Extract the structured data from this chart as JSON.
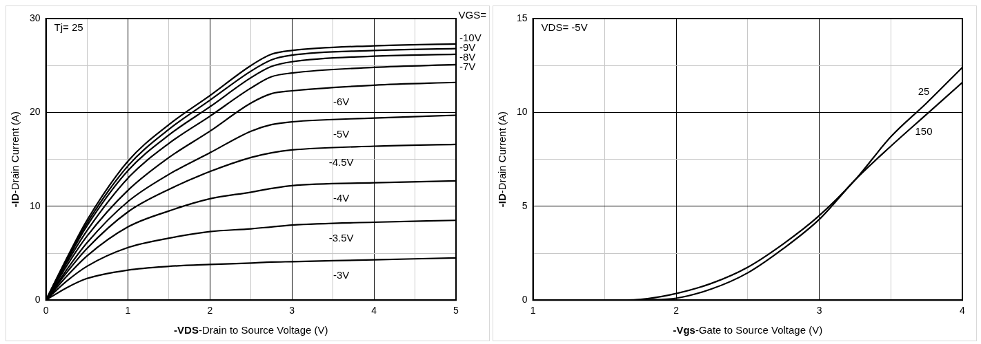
{
  "chart_data": [
    {
      "type": "line",
      "xlabel": "-VDS-Drain to Source Voltage (V)",
      "ylabel": "-ID-Drain Current (A)",
      "x": [
        0,
        0.25,
        0.5,
        1,
        1.5,
        2,
        2.5,
        2.75,
        3,
        4,
        5
      ],
      "xlim": [
        0,
        5
      ],
      "ylim": [
        0,
        30
      ],
      "xticks": [
        0,
        {
          "value": 0.5,
          "label": null
        },
        1,
        {
          "value": 1.5,
          "label": null
        },
        2,
        {
          "value": 2.5,
          "label": null
        },
        3,
        {
          "value": 3.5,
          "label": null
        },
        4,
        {
          "value": 4.5,
          "label": null
        },
        5
      ],
      "yticks": [
        0,
        {
          "value": 5,
          "label": null
        },
        10,
        {
          "value": 15,
          "label": null
        },
        20,
        {
          "value": 25,
          "label": null
        },
        30
      ],
      "grid": true,
      "series": [
        {
          "name": "-10V",
          "color": "#000000",
          "values": [
            0,
            4.4,
            8.5,
            14.8,
            18.7,
            21.8,
            25.0,
            26.2,
            26.6,
            27.1,
            27.3
          ]
        },
        {
          "name": "-9V",
          "color": "#000000",
          "values": [
            0,
            4.3,
            8.2,
            14.3,
            18.2,
            21.3,
            24.4,
            25.6,
            26.1,
            26.6,
            26.8
          ]
        },
        {
          "name": "-8V",
          "color": "#000000",
          "values": [
            0,
            4.1,
            7.9,
            13.8,
            17.6,
            20.6,
            23.7,
            24.9,
            25.4,
            26.0,
            26.2
          ]
        },
        {
          "name": "-7V",
          "color": "#000000",
          "values": [
            0,
            3.9,
            7.4,
            13.0,
            16.7,
            19.6,
            22.6,
            23.8,
            24.2,
            24.8,
            25.1
          ]
        },
        {
          "name": "-6V",
          "color": "#000000",
          "values": [
            0,
            3.6,
            6.8,
            11.7,
            15.2,
            18.0,
            21.0,
            22.0,
            22.3,
            22.9,
            23.2
          ]
        },
        {
          "name": "-5V",
          "color": "#000000",
          "values": [
            0,
            3.2,
            6.1,
            10.5,
            13.4,
            15.7,
            18.0,
            18.7,
            19.0,
            19.4,
            19.7
          ]
        },
        {
          "name": "-4.5V",
          "color": "#000000",
          "values": [
            0,
            2.9,
            5.5,
            9.4,
            11.8,
            13.7,
            15.2,
            15.7,
            16.0,
            16.4,
            16.6
          ]
        },
        {
          "name": "-4V",
          "color": "#000000",
          "values": [
            0,
            2.5,
            4.7,
            7.8,
            9.5,
            10.8,
            11.5,
            11.9,
            12.2,
            12.5,
            12.7
          ]
        },
        {
          "name": "-3.5V",
          "color": "#000000",
          "values": [
            0,
            2.0,
            3.6,
            5.6,
            6.6,
            7.3,
            7.6,
            7.8,
            8.0,
            8.3,
            8.5
          ]
        },
        {
          "name": "-3V",
          "color": "#000000",
          "values": [
            0,
            1.3,
            2.3,
            3.2,
            3.6,
            3.8,
            3.95,
            4.05,
            4.1,
            4.3,
            4.5
          ]
        }
      ],
      "legend_title": "VGS=",
      "annotations": [
        "Tj= 25"
      ]
    },
    {
      "type": "line",
      "xlabel": "-Vgs-Gate to Source Voltage (V)",
      "ylabel": "-ID-Drain Current (A)",
      "x": [
        1,
        1.6,
        1.8,
        2,
        2.25,
        2.5,
        2.75,
        3,
        3.25,
        3.5,
        3.75,
        4
      ],
      "xlim": [
        1,
        4
      ],
      "ylim": [
        0,
        15
      ],
      "xticks": [
        1,
        {
          "value": 1.5,
          "label": null
        },
        2,
        {
          "value": 2.5,
          "label": null
        },
        3,
        {
          "value": 3.5,
          "label": null
        },
        4
      ],
      "yticks": [
        0,
        {
          "value": 2.5,
          "label": null
        },
        5,
        {
          "value": 7.5,
          "label": null
        },
        10,
        {
          "value": 12.5,
          "label": null
        },
        15
      ],
      "grid": true,
      "series": [
        {
          "name": "25",
          "color": "#000000",
          "values": [
            0,
            0,
            0.08,
            0.35,
            0.9,
            1.75,
            3.0,
            4.5,
            6.4,
            8.7,
            10.5,
            12.4
          ]
        },
        {
          "name": "150",
          "color": "#000000",
          "values": [
            0,
            0,
            0.02,
            0.1,
            0.6,
            1.45,
            2.75,
            4.3,
            6.4,
            8.2,
            9.9,
            11.6
          ]
        }
      ],
      "annotations": [
        "VDS= -5V"
      ]
    }
  ]
}
